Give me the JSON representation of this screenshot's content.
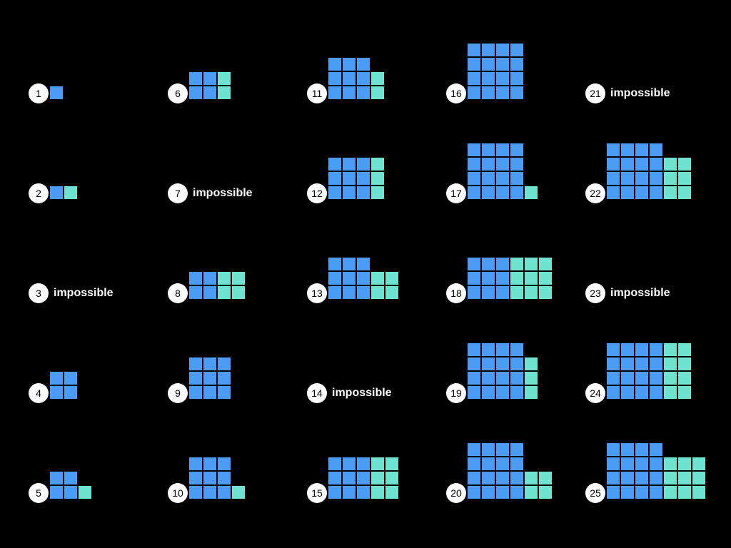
{
  "colors": {
    "background": "#000000",
    "square_a": "#4a9cf7",
    "square_b": "#6ee3cf",
    "circle": "#ffffff"
  },
  "impossible_text": "impossible",
  "entries": [
    {
      "n": "1",
      "blocks": [
        [
          1,
          1
        ]
      ]
    },
    {
      "n": "2",
      "blocks": [
        [
          1,
          1
        ],
        [
          1,
          1
        ]
      ]
    },
    {
      "n": "3",
      "impossible": true
    },
    {
      "n": "4",
      "blocks": [
        [
          2,
          2
        ]
      ]
    },
    {
      "n": "5",
      "blocks": [
        [
          2,
          2
        ],
        [
          1,
          1
        ]
      ]
    },
    {
      "n": "6",
      "blocks": [
        [
          2,
          2
        ],
        [
          1,
          2
        ]
      ]
    },
    {
      "n": "7",
      "impossible": true
    },
    {
      "n": "8",
      "blocks": [
        [
          2,
          2
        ],
        [
          2,
          2
        ]
      ]
    },
    {
      "n": "9",
      "blocks": [
        [
          3,
          3
        ]
      ]
    },
    {
      "n": "10",
      "blocks": [
        [
          3,
          3
        ],
        [
          1,
          1
        ]
      ]
    },
    {
      "n": "11",
      "blocks": [
        [
          3,
          3
        ],
        [
          1,
          2
        ]
      ]
    },
    {
      "n": "12",
      "blocks": [
        [
          3,
          3
        ],
        [
          1,
          3
        ]
      ]
    },
    {
      "n": "13",
      "blocks": [
        [
          3,
          3
        ],
        [
          2,
          2
        ]
      ]
    },
    {
      "n": "14",
      "impossible": true
    },
    {
      "n": "15",
      "blocks": [
        [
          3,
          3
        ],
        [
          2,
          3
        ]
      ]
    },
    {
      "n": "16",
      "blocks": [
        [
          4,
          4
        ]
      ]
    },
    {
      "n": "17",
      "blocks": [
        [
          4,
          4
        ],
        [
          1,
          1
        ]
      ]
    },
    {
      "n": "18",
      "blocks": [
        [
          3,
          3
        ],
        [
          3,
          3
        ]
      ]
    },
    {
      "n": "19",
      "blocks": [
        [
          4,
          4
        ],
        [
          1,
          3
        ]
      ]
    },
    {
      "n": "20",
      "blocks": [
        [
          4,
          4
        ],
        [
          2,
          2
        ]
      ]
    },
    {
      "n": "21",
      "impossible": true
    },
    {
      "n": "22",
      "blocks": [
        [
          4,
          4
        ],
        [
          2,
          3
        ]
      ]
    },
    {
      "n": "23",
      "impossible": true
    },
    {
      "n": "24",
      "blocks": [
        [
          4,
          4
        ],
        [
          2,
          4
        ]
      ]
    },
    {
      "n": "25",
      "blocks": [
        [
          4,
          4
        ],
        [
          3,
          3
        ]
      ]
    }
  ]
}
